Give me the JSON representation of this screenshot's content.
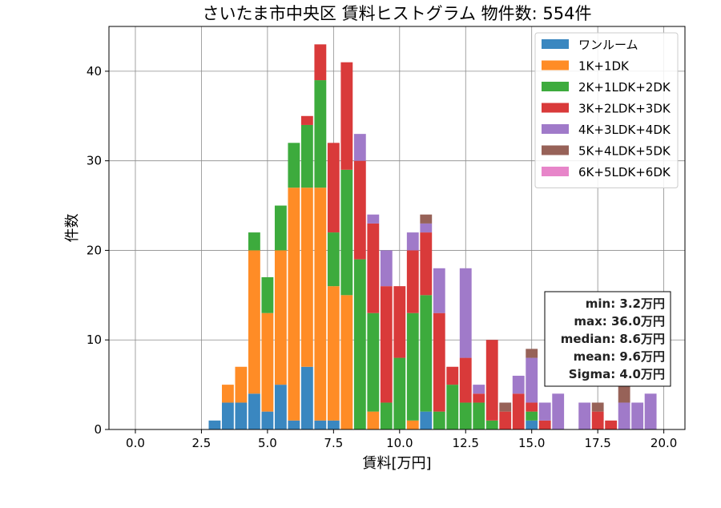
{
  "chart_data": {
    "type": "bar",
    "stacked": true,
    "title": "さいたま市中央区 賃料ヒストグラム  物件数: 554件",
    "xlabel": "賃料[万円]",
    "ylabel": "件数",
    "xlim": [
      -1.0,
      20.8
    ],
    "ylim": [
      0,
      45
    ],
    "xticks": [
      0.0,
      2.5,
      5.0,
      7.5,
      10.0,
      12.5,
      15.0,
      17.5,
      20.0
    ],
    "xtick_labels": [
      "0.0",
      "2.5",
      "5.0",
      "7.5",
      "10.0",
      "12.5",
      "15.0",
      "17.5",
      "20.0"
    ],
    "yticks": [
      0,
      10,
      20,
      30,
      40
    ],
    "ytick_labels": [
      "0",
      "10",
      "20",
      "30",
      "40"
    ],
    "grid": true,
    "legend_position": "top-right",
    "bin_width": 0.5,
    "bar_width": 0.45,
    "x": [
      3.0,
      3.5,
      4.0,
      4.5,
      5.0,
      5.5,
      6.0,
      6.5,
      7.0,
      7.5,
      8.0,
      8.5,
      9.0,
      9.5,
      10.0,
      10.5,
      11.0,
      11.5,
      12.0,
      12.5,
      13.0,
      13.5,
      14.0,
      14.5,
      15.0,
      15.5,
      16.0,
      16.5,
      17.0,
      17.5,
      18.0,
      18.5,
      19.0,
      19.5
    ],
    "series": [
      {
        "name": "ワンルーム",
        "color": "#3a87c0",
        "values": [
          1,
          3,
          3,
          4,
          2,
          5,
          1,
          7,
          1,
          1,
          0,
          0,
          0,
          0,
          0,
          0,
          2,
          0,
          0,
          0,
          0,
          0,
          0,
          0,
          1,
          0,
          0,
          0,
          0,
          0,
          0,
          0,
          0,
          0
        ]
      },
      {
        "name": "1K+1DK",
        "color": "#ff8c26",
        "values": [
          0,
          2,
          4,
          16,
          11,
          15,
          26,
          20,
          26,
          15,
          15,
          0,
          2,
          0,
          0,
          1,
          0,
          0,
          0,
          0,
          0,
          0,
          0,
          0,
          0,
          0,
          0,
          0,
          0,
          0,
          0,
          0,
          0,
          0
        ]
      },
      {
        "name": "2K+1LDK+2DK",
        "color": "#3dab3d",
        "values": [
          0,
          0,
          0,
          2,
          4,
          5,
          5,
          7,
          12,
          6,
          14,
          19,
          11,
          3,
          8,
          12,
          13,
          2,
          5,
          3,
          3,
          1,
          0,
          0,
          1,
          0,
          0,
          0,
          0,
          0,
          0,
          0,
          0,
          0
        ]
      },
      {
        "name": "3K+2LDK+3DK",
        "color": "#d93a3a",
        "values": [
          0,
          0,
          0,
          0,
          0,
          0,
          0,
          1,
          4,
          10,
          12,
          11,
          10,
          13,
          8,
          7,
          7,
          11,
          2,
          5,
          1,
          9,
          2,
          4,
          1,
          1,
          0,
          0,
          0,
          2,
          1,
          0,
          0,
          0
        ]
      },
      {
        "name": "4K+3LDK+4DK",
        "color": "#a07ac9",
        "values": [
          0,
          0,
          0,
          0,
          0,
          0,
          0,
          0,
          0,
          0,
          0,
          3,
          1,
          4,
          0,
          2,
          1,
          5,
          0,
          10,
          1,
          0,
          0,
          2,
          5,
          2,
          4,
          0,
          3,
          0,
          0,
          3,
          3,
          4
        ]
      },
      {
        "name": "5K+4LDK+5DK",
        "color": "#976258",
        "values": [
          0,
          0,
          0,
          0,
          0,
          0,
          0,
          0,
          0,
          0,
          0,
          0,
          0,
          0,
          0,
          0,
          1,
          0,
          0,
          0,
          0,
          0,
          1,
          0,
          1,
          0,
          0,
          0,
          0,
          1,
          0,
          2,
          0,
          0
        ]
      },
      {
        "name": "6K+5LDK+6DK",
        "color": "#e785c9",
        "values": [
          0,
          0,
          0,
          0,
          0,
          0,
          0,
          0,
          0,
          0,
          0,
          0,
          0,
          0,
          0,
          0,
          0,
          0,
          0,
          0,
          0,
          0,
          0,
          0,
          0,
          0,
          0,
          0,
          0,
          0,
          0,
          0,
          0,
          0
        ]
      }
    ],
    "stats_box": [
      "min: 3.2万円",
      "max: 36.0万円",
      "median: 8.6万円",
      "mean: 9.6万円",
      "Sigma: 4.0万円"
    ]
  }
}
